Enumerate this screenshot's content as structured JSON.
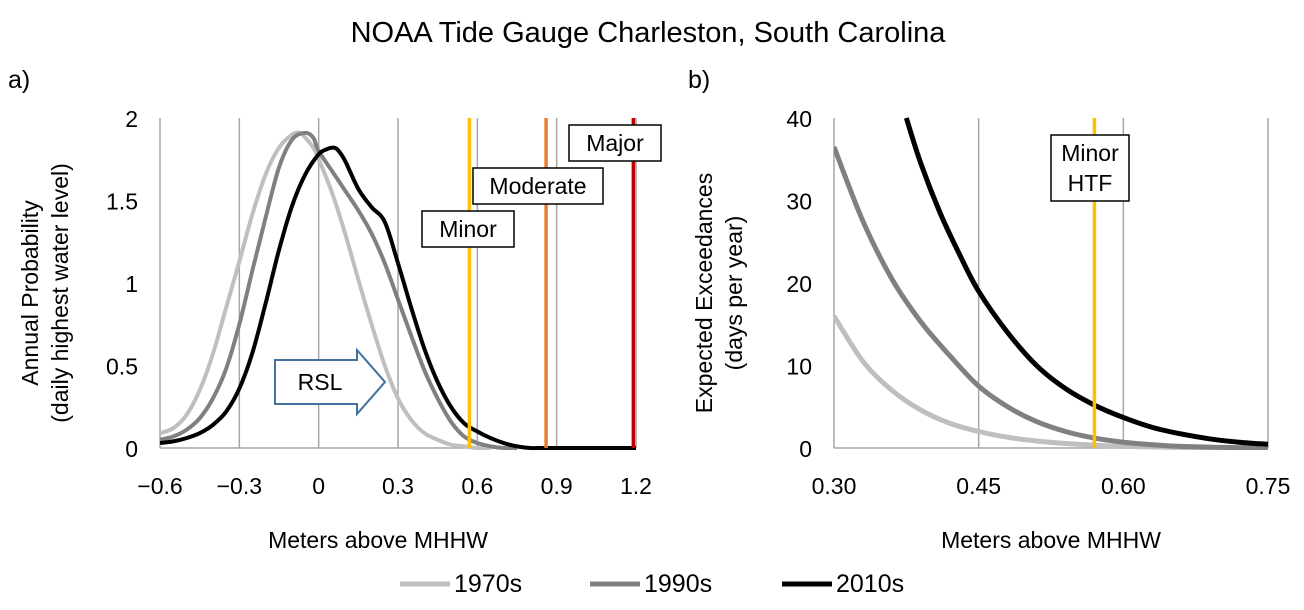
{
  "title": "NOAA Tide Gauge Charleston, South Carolina",
  "legend": {
    "placement": "bottom",
    "items": [
      {
        "label": "1970s",
        "color": "#bfbfbf"
      },
      {
        "label": "1990s",
        "color": "#808080"
      },
      {
        "label": "2010s",
        "color": "#000000"
      }
    ]
  },
  "chart_data": [
    {
      "panel_label": "a)",
      "type": "line",
      "xlabel": "Meters above MHHW",
      "ylabel": "Annual Probability",
      "ylabel_sub": "(daily highest water level)",
      "xlim": [
        -0.6,
        1.2
      ],
      "ylim": [
        0,
        2
      ],
      "xticks": [
        -0.6,
        -0.3,
        0,
        0.3,
        0.6,
        0.9,
        1.2
      ],
      "xtick_labels": [
        "−0.6",
        "−0.3",
        "0",
        "0.3",
        "0.6",
        "0.9",
        "1.2"
      ],
      "yticks": [
        0,
        0.5,
        1,
        1.5,
        2
      ],
      "ytick_labels": [
        "0",
        "0.5",
        "1",
        "1.5",
        "2"
      ],
      "grid": {
        "vertical": true,
        "horizontal": false
      },
      "series": [
        {
          "name": "1970s",
          "color": "#bfbfbf",
          "x": [
            -0.6,
            -0.55,
            -0.5,
            -0.45,
            -0.4,
            -0.35,
            -0.3,
            -0.25,
            -0.2,
            -0.15,
            -0.1,
            -0.07,
            -0.05,
            -0.02,
            0.0,
            0.05,
            0.1,
            0.15,
            0.2,
            0.25,
            0.3,
            0.35,
            0.4,
            0.45,
            0.5,
            0.55,
            0.6,
            0.65
          ],
          "y": [
            0.09,
            0.12,
            0.2,
            0.35,
            0.57,
            0.85,
            1.13,
            1.42,
            1.66,
            1.82,
            1.9,
            1.91,
            1.88,
            1.82,
            1.75,
            1.55,
            1.3,
            1.02,
            0.75,
            0.5,
            0.3,
            0.17,
            0.09,
            0.05,
            0.02,
            0.01,
            0.0,
            0.0
          ]
        },
        {
          "name": "1990s",
          "color": "#808080",
          "x": [
            -0.6,
            -0.55,
            -0.5,
            -0.45,
            -0.4,
            -0.35,
            -0.3,
            -0.25,
            -0.2,
            -0.15,
            -0.1,
            -0.05,
            -0.02,
            0.0,
            0.05,
            0.1,
            0.15,
            0.2,
            0.25,
            0.3,
            0.35,
            0.4,
            0.45,
            0.5,
            0.55,
            0.6,
            0.65,
            0.7,
            0.75
          ],
          "y": [
            0.05,
            0.07,
            0.11,
            0.18,
            0.3,
            0.48,
            0.75,
            1.08,
            1.4,
            1.7,
            1.87,
            1.91,
            1.88,
            1.8,
            1.68,
            1.56,
            1.44,
            1.3,
            1.12,
            0.9,
            0.68,
            0.47,
            0.3,
            0.16,
            0.07,
            0.03,
            0.01,
            0.0,
            0.0
          ]
        },
        {
          "name": "2010s",
          "color": "#000000",
          "x": [
            -0.6,
            -0.55,
            -0.5,
            -0.45,
            -0.4,
            -0.35,
            -0.3,
            -0.25,
            -0.2,
            -0.15,
            -0.1,
            -0.05,
            0.0,
            0.03,
            0.05,
            0.07,
            0.1,
            0.15,
            0.2,
            0.25,
            0.3,
            0.35,
            0.4,
            0.45,
            0.5,
            0.55,
            0.6,
            0.65,
            0.7,
            0.75,
            0.8,
            0.85,
            0.9,
            1.0,
            1.1,
            1.2
          ],
          "y": [
            0.03,
            0.04,
            0.06,
            0.09,
            0.14,
            0.22,
            0.36,
            0.58,
            0.88,
            1.2,
            1.47,
            1.66,
            1.78,
            1.81,
            1.82,
            1.81,
            1.74,
            1.57,
            1.46,
            1.37,
            1.12,
            0.85,
            0.6,
            0.4,
            0.25,
            0.15,
            0.1,
            0.06,
            0.03,
            0.01,
            0.0,
            0.0,
            0.0,
            0.0,
            0.0,
            0.0
          ]
        }
      ],
      "thresholds": [
        {
          "label": "Minor",
          "x": 0.57,
          "color": "#ffc000"
        },
        {
          "label": "Moderate",
          "x": 0.86,
          "color": "#ed7d31"
        },
        {
          "label": "Major",
          "x": 1.19,
          "color": "#c00000"
        }
      ],
      "annotation": {
        "label": "RSL",
        "shape": "right-arrow",
        "color": "#41719c"
      }
    },
    {
      "panel_label": "b)",
      "type": "line",
      "xlabel": "Meters above MHHW",
      "ylabel": "Expected Exceedances",
      "ylabel_sub": "(days per year)",
      "xlim": [
        0.3,
        0.75
      ],
      "ylim": [
        0,
        40
      ],
      "xticks": [
        0.3,
        0.45,
        0.6,
        0.75
      ],
      "xtick_labels": [
        "0.30",
        "0.45",
        "0.60",
        "0.75"
      ],
      "yticks": [
        0,
        10,
        20,
        30,
        40
      ],
      "ytick_labels": [
        "0",
        "10",
        "20",
        "30",
        "40"
      ],
      "grid": {
        "vertical": true,
        "horizontal": false
      },
      "series": [
        {
          "name": "1970s",
          "color": "#bfbfbf",
          "x": [
            0.3,
            0.33,
            0.36,
            0.39,
            0.42,
            0.45,
            0.48,
            0.51,
            0.54,
            0.57,
            0.6,
            0.65,
            0.7,
            0.75
          ],
          "y": [
            16,
            10.5,
            7,
            4.6,
            3.0,
            2.0,
            1.3,
            0.85,
            0.55,
            0.35,
            0.2,
            0.08,
            0.03,
            0.01
          ]
        },
        {
          "name": "1990s",
          "color": "#808080",
          "x": [
            0.3,
            0.33,
            0.36,
            0.39,
            0.42,
            0.45,
            0.48,
            0.51,
            0.54,
            0.57,
            0.6,
            0.63,
            0.66,
            0.7,
            0.75
          ],
          "y": [
            36.5,
            27.5,
            20.5,
            15.3,
            11.2,
            7.5,
            5.0,
            3.2,
            2.0,
            1.2,
            0.7,
            0.4,
            0.2,
            0.08,
            0.02
          ]
        },
        {
          "name": "2010s",
          "color": "#000000",
          "x": [
            0.375,
            0.39,
            0.41,
            0.43,
            0.45,
            0.48,
            0.51,
            0.54,
            0.57,
            0.6,
            0.63,
            0.66,
            0.69,
            0.72,
            0.75
          ],
          "y": [
            40,
            34.5,
            28.5,
            23.5,
            19,
            14,
            10,
            7.2,
            5.2,
            3.7,
            2.5,
            1.7,
            1.1,
            0.7,
            0.45
          ]
        }
      ],
      "thresholds": [
        {
          "label": "Minor\nHTF",
          "label_lines": [
            "Minor",
            "HTF"
          ],
          "x": 0.57,
          "color": "#ffc000"
        }
      ]
    }
  ]
}
